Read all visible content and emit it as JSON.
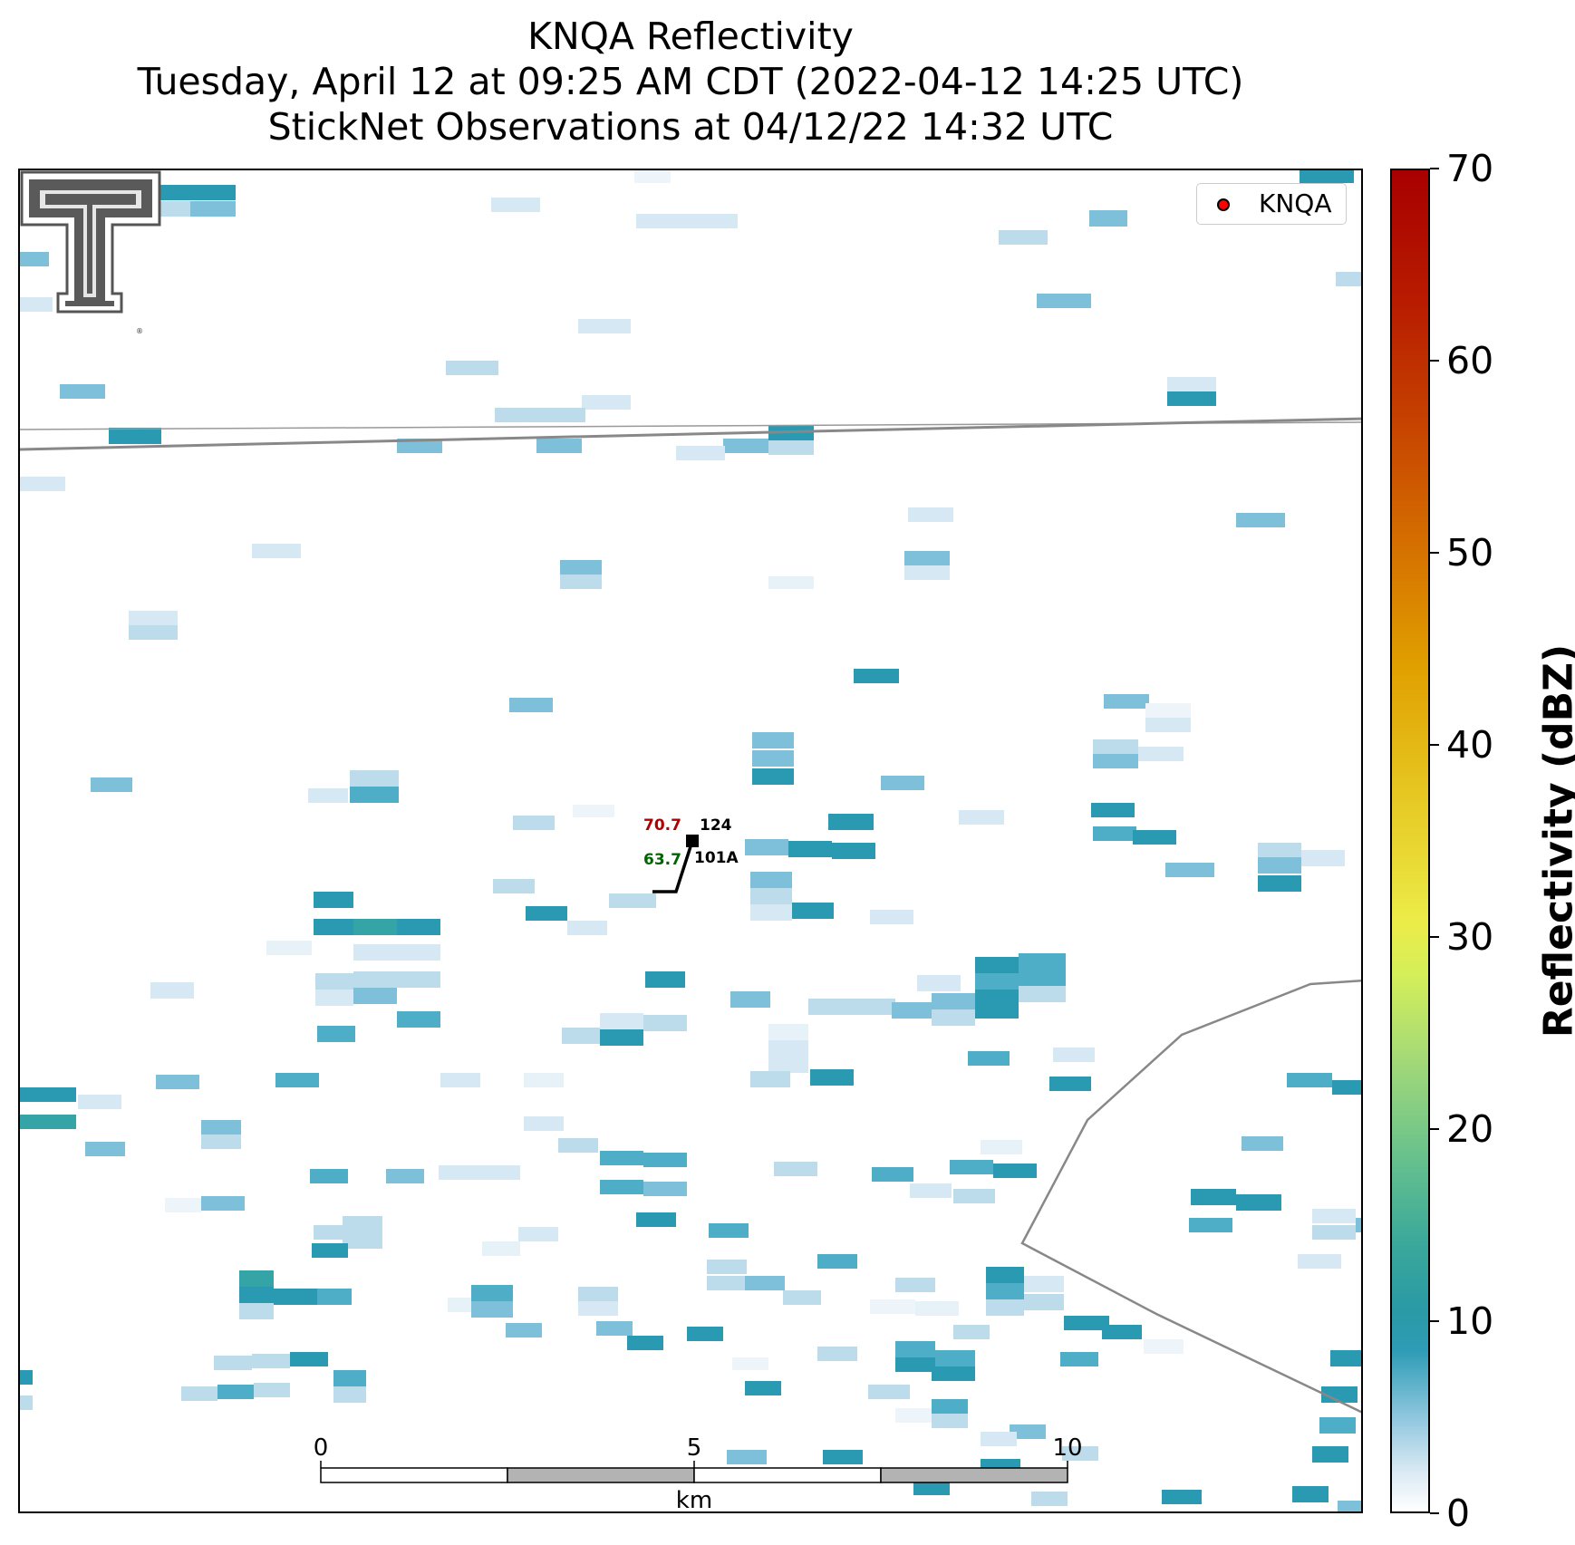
{
  "title": {
    "line1": "KNQA Reflectivity",
    "line2": "Tuesday, April 12 at 09:25 AM CDT (2022-04-12 14:25 UTC)",
    "line3": "StickNet Observations at 04/12/22 14:32 UTC"
  },
  "legend": {
    "label": "KNQA",
    "marker_color": "#ff0000"
  },
  "station": {
    "temperature": "70.7",
    "dewpoint": "63.7",
    "value_right": "124",
    "station_id": "101A",
    "temperature_color": "#b00000",
    "dewpoint_color": "#006400"
  },
  "scale_bar": {
    "tick_labels": [
      "0",
      "5",
      "10"
    ],
    "unit": "km"
  },
  "colorbar": {
    "label": "Reflectivity (dBZ)",
    "range": [
      0,
      70
    ],
    "tick_labels": [
      "0",
      "10",
      "20",
      "30",
      "40",
      "50",
      "60",
      "70"
    ]
  },
  "colors": {
    "background": "#ffffff",
    "boundary_line": "#888888",
    "radar_low": "#e9f2f8",
    "radar_high": "#1f98b0"
  }
}
